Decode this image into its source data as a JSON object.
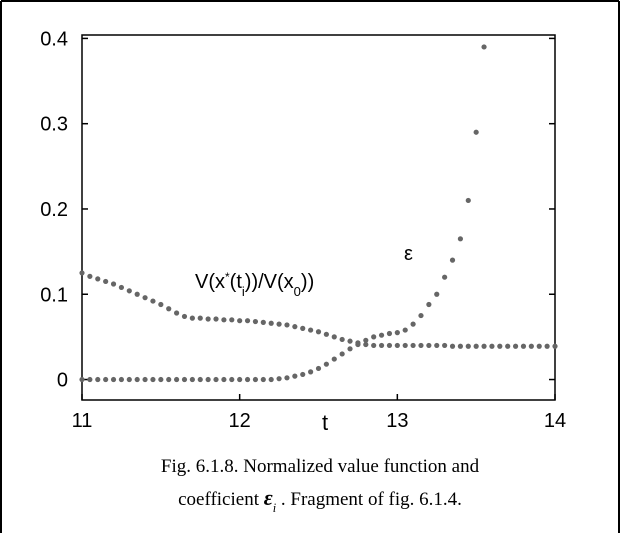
{
  "chart_data": {
    "type": "scatter",
    "xlabel": "t",
    "xlim": [
      11,
      14
    ],
    "xticks": [
      11,
      12,
      13,
      14
    ],
    "ylim": [
      -0.024,
      0.404
    ],
    "yticks": [
      0,
      0.1,
      0.2,
      0.3,
      0.4
    ],
    "grid": false,
    "color": "#666666",
    "series": [
      {
        "name": "V(x*(ti))/V(x0))",
        "x": [
          11,
          11.05,
          11.1,
          11.15,
          11.2,
          11.25,
          11.3,
          11.35,
          11.4,
          11.45,
          11.5,
          11.55,
          11.6,
          11.65,
          11.7,
          11.75,
          11.8,
          11.85,
          11.9,
          11.95,
          12,
          12.05,
          12.1,
          12.15,
          12.2,
          12.25,
          12.3,
          12.35,
          12.4,
          12.45,
          12.5,
          12.55,
          12.6,
          12.65,
          12.7,
          12.75,
          12.8,
          12.85,
          12.9,
          12.95,
          13,
          13.05,
          13.1,
          13.15,
          13.2,
          13.25,
          13.3,
          13.35,
          13.4,
          13.45,
          13.5,
          13.55,
          13.6,
          13.65,
          13.7,
          13.75,
          13.8,
          13.85,
          13.9,
          13.95,
          14
        ],
        "values": [
          0.125,
          0.121,
          0.118,
          0.115,
          0.112,
          0.108,
          0.104,
          0.1,
          0.096,
          0.092,
          0.088,
          0.083,
          0.078,
          0.074,
          0.072,
          0.072,
          0.071,
          0.071,
          0.07,
          0.07,
          0.069,
          0.069,
          0.068,
          0.067,
          0.066,
          0.065,
          0.064,
          0.062,
          0.06,
          0.058,
          0.056,
          0.053,
          0.05,
          0.047,
          0.045,
          0.043,
          0.041,
          0.04,
          0.04,
          0.04,
          0.04,
          0.04,
          0.04,
          0.04,
          0.04,
          0.04,
          0.04,
          0.039,
          0.039,
          0.039,
          0.039,
          0.039,
          0.039,
          0.039,
          0.039,
          0.039,
          0.039,
          0.039,
          0.039,
          0.039,
          0.039
        ]
      },
      {
        "name": "ε",
        "x": [
          11,
          11.05,
          11.1,
          11.15,
          11.2,
          11.25,
          11.3,
          11.35,
          11.4,
          11.45,
          11.5,
          11.55,
          11.6,
          11.65,
          11.7,
          11.75,
          11.8,
          11.85,
          11.9,
          11.95,
          12,
          12.05,
          12.1,
          12.15,
          12.2,
          12.25,
          12.3,
          12.35,
          12.4,
          12.45,
          12.5,
          12.55,
          12.6,
          12.65,
          12.7,
          12.75,
          12.8,
          12.85,
          12.9,
          12.95,
          13,
          13.05,
          13.1,
          13.15,
          13.2,
          13.25,
          13.3,
          13.35,
          13.4,
          13.45,
          13.5,
          13.55
        ],
        "values": [
          0,
          0,
          0,
          0,
          0,
          0,
          0,
          0,
          0,
          0,
          0,
          0,
          0,
          0,
          0,
          0,
          0,
          0,
          0,
          0,
          0,
          0,
          0,
          0,
          0,
          0.001,
          0.002,
          0.004,
          0.006,
          0.009,
          0.013,
          0.018,
          0.024,
          0.03,
          0.036,
          0.041,
          0.046,
          0.05,
          0.052,
          0.054,
          0.055,
          0.058,
          0.065,
          0.075,
          0.088,
          0.1,
          0.12,
          0.14,
          0.165,
          0.21,
          0.29,
          0.39
        ]
      }
    ],
    "annotations": [
      {
        "parts": [
          {
            "text": "V(x"
          },
          {
            "text": "*",
            "style": "sup"
          },
          {
            "text": "(t"
          },
          {
            "text": "i",
            "style": "sub"
          },
          {
            "text": "))/V(x"
          },
          {
            "text": "0",
            "style": "sub"
          },
          {
            "text": "))"
          }
        ]
      },
      {
        "parts": [
          {
            "text": "ε"
          }
        ]
      }
    ]
  },
  "caption": {
    "lines": [
      {
        "parts": [
          {
            "text": "Fig. 6.1.8. Normalized value function and"
          }
        ]
      },
      {
        "parts": [
          {
            "text": "coefficient "
          },
          {
            "text": "ε",
            "style": "symbol"
          },
          {
            "text": "i",
            "style": "sub"
          },
          {
            "text": " . Fragment of fig.  6.1.4."
          }
        ]
      }
    ]
  }
}
